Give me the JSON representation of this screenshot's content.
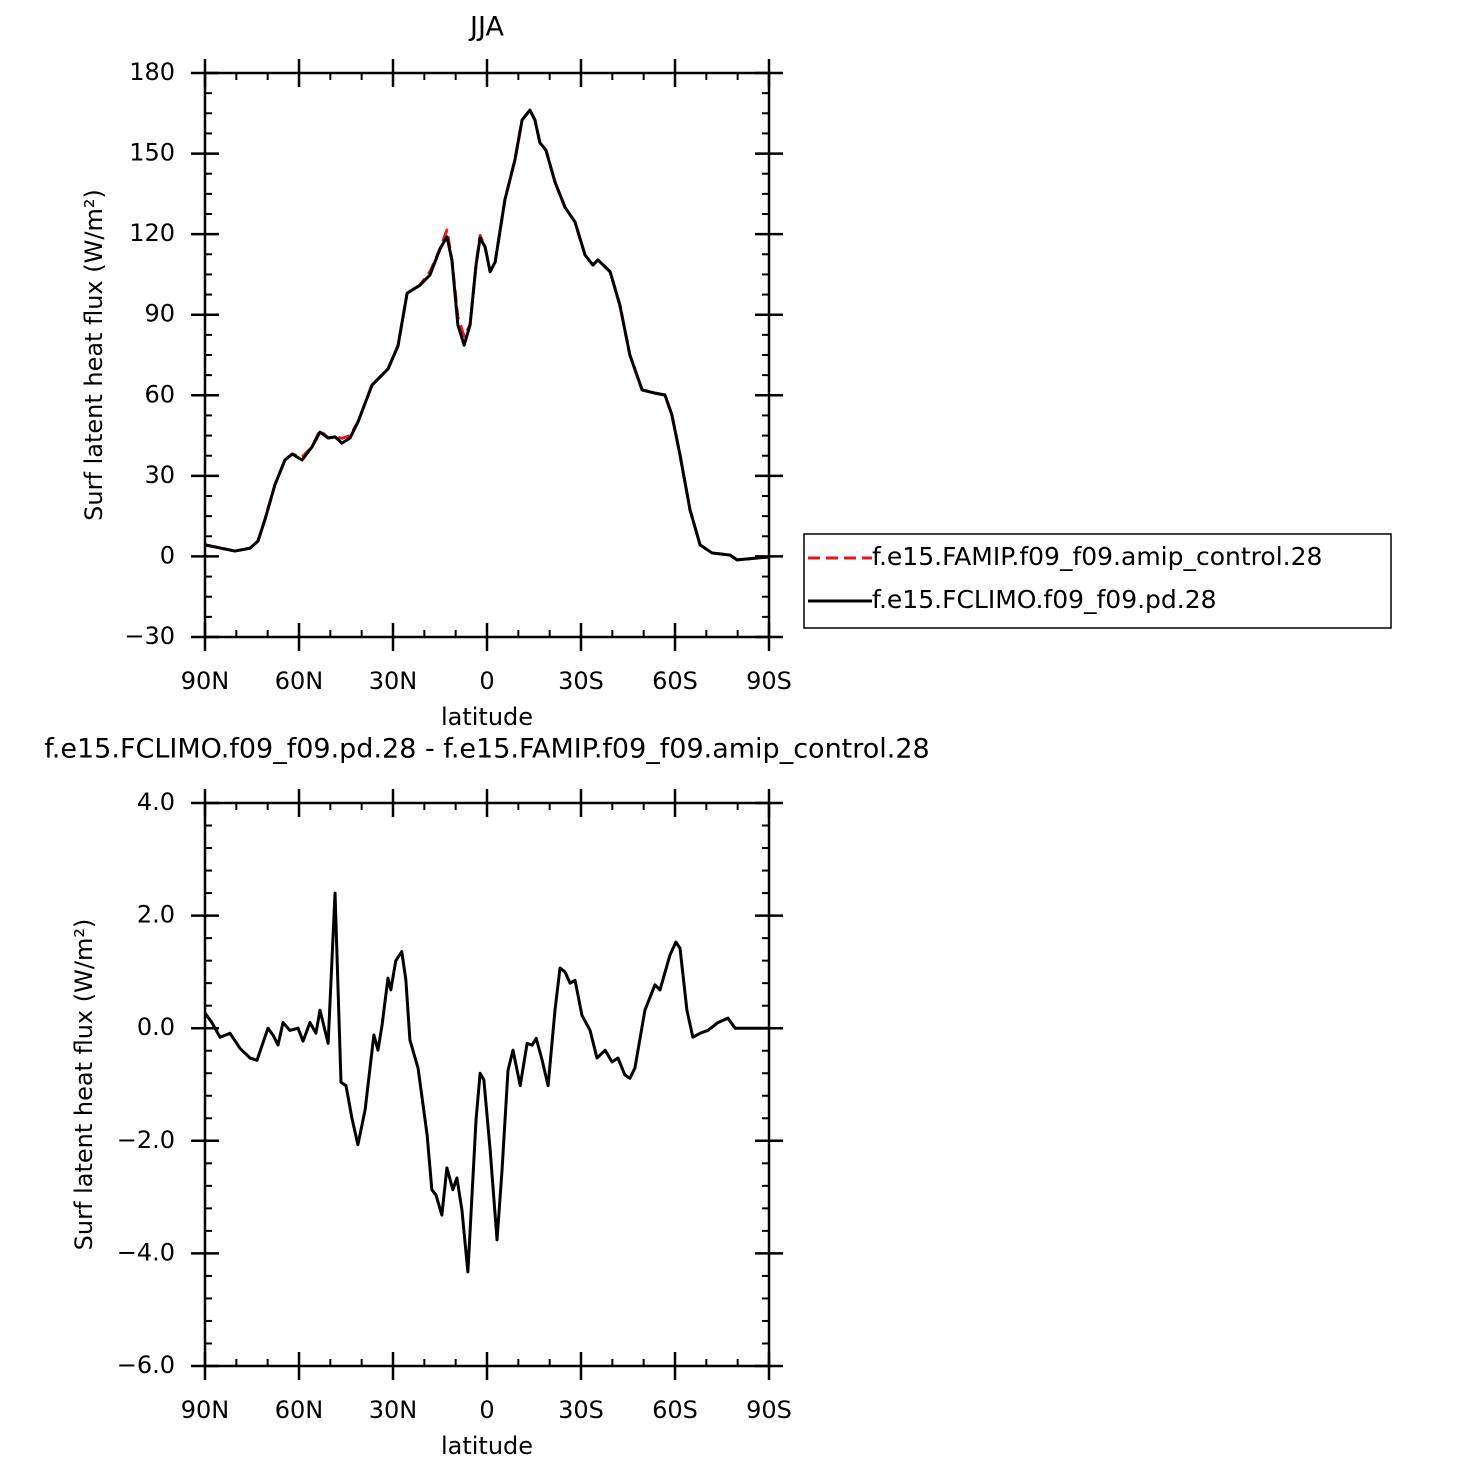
{
  "chart_data": [
    {
      "type": "line",
      "title": "JJA",
      "x_label": "latitude",
      "y_label": "Surf latent heat flux (W/m²)",
      "xlim": [
        90,
        -90
      ],
      "xticks": [
        {
          "value": 90,
          "label": "90N"
        },
        {
          "value": 60,
          "label": "60N"
        },
        {
          "value": 30,
          "label": "30N"
        },
        0,
        {
          "value": -30,
          "label": "30S"
        },
        {
          "value": -60,
          "label": "60S"
        },
        {
          "value": -90,
          "label": "90S"
        }
      ],
      "ylim": [
        -30,
        180
      ],
      "yticks": [
        {
          "value": -30,
          "label": "−30"
        },
        0,
        30,
        60,
        90,
        120,
        150,
        180
      ],
      "legend": "right",
      "x": [
        90,
        80.4,
        75.6,
        73.1,
        70.9,
        67.7,
        64.5,
        62.2,
        59.0,
        55.9,
        53.3,
        50.7,
        48.5,
        46.3,
        43.7,
        41.2,
        36.7,
        31.6,
        28.4,
        25.5,
        21.4,
        18.2,
        15.0,
        12.8,
        11.2,
        9.3,
        7.3,
        5.4,
        3.5,
        2.2,
        0.6,
        -1.0,
        -2.6,
        -5.7,
        -8.9,
        -11.2,
        -13.7,
        -15.3,
        -16.9,
        -18.8,
        -21.7,
        -24.9,
        -28.1,
        -31.3,
        -33.8,
        -35.4,
        -39.3,
        -42.4,
        -45.6,
        -49.5,
        -53.6,
        -56.8,
        -59.0,
        -61.6,
        -64.8,
        -68.0,
        -71.8,
        -77.6,
        -79.8,
        -90
      ],
      "series": [
        {
          "name": "f.e15.FAMIP.f09_f09.amip_control.28",
          "color": "#e8141c",
          "line_style": "dashed",
          "values": [
            4.3,
            2.0,
            3.1,
            5.7,
            13.6,
            26.6,
            35.9,
            38.1,
            37,
            40.7,
            47,
            44.1,
            44.5,
            44,
            45,
            50,
            63.8,
            69.8,
            78.4,
            98,
            101,
            106,
            114.5,
            121.5,
            110.4,
            89,
            82,
            86.2,
            108.5,
            119.5,
            115.2,
            106,
            109.6,
            132.7,
            147.6,
            162.5,
            166.2,
            162.5,
            154,
            151.3,
            139.4,
            130,
            124.5,
            112.2,
            108.5,
            110.4,
            106,
            93.6,
            75,
            62,
            60.8,
            60.1,
            52.7,
            37.8,
            17.3,
            4.3,
            1.3,
            0.5,
            -1.3,
            -0.2
          ]
        },
        {
          "name": "f.e15.FCLIMO.f09_f09.pd.28",
          "color": "#000000",
          "line_style": "solid",
          "values": [
            4.3,
            2.0,
            3.1,
            5.7,
            13.6,
            26.6,
            35.9,
            38.1,
            35.9,
            40.7,
            46.3,
            44.1,
            44.5,
            42.2,
            44.1,
            50,
            63.8,
            69.8,
            78.4,
            98,
            101,
            104.8,
            114.5,
            119,
            110.4,
            86.2,
            78.7,
            86.2,
            108.5,
            118.6,
            115.2,
            106,
            109.6,
            132.7,
            147.6,
            162.5,
            166.2,
            162.5,
            154,
            151.3,
            139.4,
            130,
            124.5,
            112.2,
            108.5,
            110.4,
            106,
            93.6,
            75,
            62,
            60.8,
            60.1,
            52.7,
            37.8,
            17.3,
            4.3,
            1.3,
            0.5,
            -1.3,
            -0.2
          ]
        }
      ]
    },
    {
      "type": "line",
      "title": "f.e15.FCLIMO.f09_f09.pd.28 - f.e15.FAMIP.f09_f09.amip_control.28",
      "x_label": "latitude",
      "y_label": "Surf latent heat flux (W/m²)",
      "xlim": [
        90,
        -90
      ],
      "xticks": [
        {
          "value": 90,
          "label": "90N"
        },
        {
          "value": 60,
          "label": "60N"
        },
        {
          "value": 30,
          "label": "30N"
        },
        0,
        {
          "value": -30,
          "label": "30S"
        },
        {
          "value": -60,
          "label": "60S"
        },
        {
          "value": -90,
          "label": "90S"
        }
      ],
      "ylim": [
        -6,
        4
      ],
      "yticks": [
        {
          "value": -6,
          "label": "−6.0"
        },
        {
          "value": -4,
          "label": "−4.0"
        },
        {
          "value": -2,
          "label": "−2.0"
        },
        {
          "value": 0,
          "label": "0.0"
        },
        {
          "value": 2,
          "label": "2.0"
        },
        {
          "value": 4,
          "label": "4.0"
        }
      ],
      "x": [
        90,
        87.8,
        85.2,
        82.0,
        78.8,
        75.6,
        73.4,
        69.9,
        68.3,
        66.7,
        65.1,
        62.9,
        60.3,
        58.7,
        56.5,
        54.6,
        53.3,
        50.7,
        48.5,
        46.6,
        45.0,
        43.1,
        41.2,
        38.9,
        36.1,
        34.8,
        33.5,
        31.6,
        30.7,
        29.1,
        27.2,
        25.9,
        24.6,
        22.0,
        19.1,
        17.6,
        16.3,
        14.4,
        12.8,
        10.9,
        9.6,
        8.0,
        6.1,
        3.5,
        2.2,
        1.0,
        -1.0,
        -3.2,
        -4.8,
        -6.7,
        -8.3,
        -10.6,
        -12.8,
        -14.4,
        -15.7,
        -17.6,
        -19.5,
        -21.7,
        -23.3,
        -24.9,
        -26.5,
        -28.1,
        -30.3,
        -32.9,
        -35.1,
        -37.7,
        -39.9,
        -41.8,
        -44.0,
        -45.6,
        -47.2,
        -50.4,
        -53.6,
        -55.2,
        -58.4,
        -60.3,
        -61.6,
        -63.8,
        -65.7,
        -68.0,
        -70.5,
        -73.7,
        -76.9,
        -79.2,
        -83.9,
        -90
      ],
      "series": [
        {
          "color": "#000000",
          "line_style": "solid",
          "values": [
            0.27,
            0.1,
            -0.16,
            -0.09,
            -0.36,
            -0.53,
            -0.57,
            0,
            -0.12,
            -0.3,
            0.1,
            -0.04,
            0,
            -0.23,
            0.1,
            -0.09,
            0.32,
            -0.27,
            2.4,
            -0.96,
            -1.02,
            -1.6,
            -2.07,
            -1.45,
            -0.12,
            -0.39,
            0.05,
            0.89,
            0.68,
            1.2,
            1.36,
            0.86,
            -0.21,
            -0.71,
            -1.9,
            -2.87,
            -2.96,
            -3.32,
            -2.48,
            -2.87,
            -2.66,
            -3.23,
            -4.33,
            -1.63,
            -0.8,
            -0.92,
            -2.16,
            -3.76,
            -2.52,
            -0.75,
            -0.39,
            -1.02,
            -0.27,
            -0.3,
            -0.18,
            -0.57,
            -1.02,
            0.32,
            1.07,
            1.0,
            0.8,
            0.85,
            0.23,
            -0.04,
            -0.53,
            -0.39,
            -0.6,
            -0.53,
            -0.83,
            -0.89,
            -0.71,
            0.32,
            0.77,
            0.68,
            1.3,
            1.53,
            1.42,
            0.32,
            -0.16,
            -0.09,
            -0.04,
            0.1,
            0.18,
            0,
            0,
            0
          ]
        }
      ]
    }
  ]
}
